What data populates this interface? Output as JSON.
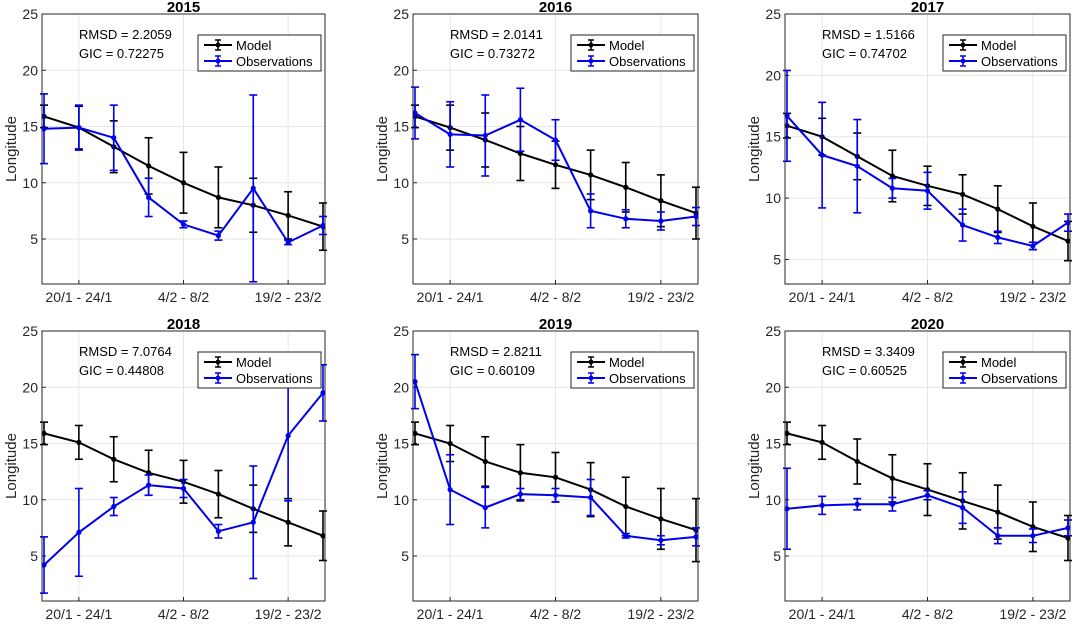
{
  "colors": {
    "model": "#000000",
    "observations": "#0000EE",
    "grid": "#e6e6e6",
    "axis": "#262626"
  },
  "legend": {
    "model": "Model",
    "observations": "Observations"
  },
  "chart_data": [
    {
      "type": "line",
      "title": "2015",
      "ylabel": "Longitude",
      "ylim": [
        1,
        25
      ],
      "yticks": [
        5,
        10,
        15,
        20,
        25
      ],
      "xticklabels": [
        "20/1 - 24/1",
        "4/2 - 8/2",
        "19/2 - 23/2"
      ],
      "stats": {
        "rmsd": "RMSD = 2.2059",
        "gic": "GIC = 0.72275"
      },
      "series": [
        {
          "name": "Model",
          "values": [
            15.9,
            14.9,
            13.2,
            11.5,
            10.0,
            8.7,
            8.0,
            7.1,
            6.1
          ],
          "errors": [
            1.0,
            1.9,
            2.3,
            2.5,
            2.7,
            2.7,
            2.4,
            2.1,
            2.1
          ]
        },
        {
          "name": "Observations",
          "values": [
            14.8,
            14.9,
            14.0,
            8.7,
            6.3,
            5.3,
            9.5,
            4.7,
            6.2
          ],
          "errors": [
            3.1,
            2.0,
            2.9,
            1.7,
            0.3,
            0.4,
            8.3,
            0.2,
            0.8
          ]
        }
      ]
    },
    {
      "type": "line",
      "title": "2016",
      "ylabel": "Longitude",
      "ylim": [
        1,
        25
      ],
      "yticks": [
        5,
        10,
        15,
        20,
        25
      ],
      "xticklabels": [
        "20/1 - 24/1",
        "4/2 - 8/2",
        "19/2 - 23/2"
      ],
      "stats": {
        "rmsd": "RMSD = 2.0141",
        "gic": "GIC = 0.73272"
      },
      "series": [
        {
          "name": "Model",
          "values": [
            15.9,
            14.9,
            13.8,
            12.6,
            11.6,
            10.7,
            9.6,
            8.4,
            7.3
          ],
          "errors": [
            1.0,
            2.0,
            2.4,
            2.4,
            2.1,
            2.2,
            2.2,
            2.3,
            2.3
          ]
        },
        {
          "name": "Observations",
          "values": [
            16.2,
            14.3,
            14.2,
            15.6,
            13.8,
            7.5,
            6.8,
            6.6,
            7.0
          ],
          "errors": [
            2.3,
            2.9,
            3.6,
            2.8,
            1.8,
            1.5,
            0.8,
            0.8,
            0.8
          ]
        }
      ]
    },
    {
      "type": "line",
      "title": "2017",
      "ylabel": "Longitude",
      "ylim": [
        3,
        25
      ],
      "yticks": [
        5,
        10,
        15,
        20,
        25
      ],
      "xticklabels": [
        "20/1 - 24/1",
        "4/2 - 8/2",
        "19/2 - 23/2"
      ],
      "stats": {
        "rmsd": "RMSD = 1.5166",
        "gic": "GIC = 0.74702"
      },
      "series": [
        {
          "name": "Model",
          "values": [
            15.9,
            15.0,
            13.4,
            11.8,
            11.0,
            10.3,
            9.1,
            7.7,
            6.5
          ],
          "errors": [
            1.0,
            1.5,
            1.9,
            2.1,
            1.6,
            1.6,
            1.9,
            1.9,
            1.6
          ]
        },
        {
          "name": "Observations",
          "values": [
            16.7,
            13.5,
            12.6,
            10.8,
            10.6,
            7.8,
            6.8,
            6.1,
            8.0
          ],
          "errors": [
            3.7,
            4.3,
            3.8,
            0.8,
            1.5,
            1.3,
            0.5,
            0.3,
            0.7
          ]
        }
      ]
    },
    {
      "type": "line",
      "title": "2018",
      "ylabel": "Longitude",
      "ylim": [
        1,
        25
      ],
      "yticks": [
        5,
        10,
        15,
        20,
        25
      ],
      "xticklabels": [
        "20/1 - 24/1",
        "4/2 - 8/2",
        "19/2 - 23/2"
      ],
      "stats": {
        "rmsd": "RMSD = 7.0764",
        "gic": "GIC = 0.44808"
      },
      "series": [
        {
          "name": "Model",
          "values": [
            15.9,
            15.1,
            13.6,
            12.4,
            11.6,
            10.5,
            9.2,
            8.0,
            6.8
          ],
          "errors": [
            1.0,
            1.5,
            2.0,
            2.0,
            1.9,
            2.1,
            2.1,
            2.1,
            2.2
          ]
        },
        {
          "name": "Observations",
          "values": [
            4.2,
            7.1,
            9.4,
            11.3,
            11.0,
            7.2,
            8.0,
            15.7,
            19.5
          ],
          "errors": [
            2.5,
            3.9,
            0.8,
            0.9,
            0.8,
            0.6,
            5.0,
            5.8,
            2.5
          ]
        }
      ]
    },
    {
      "type": "line",
      "title": "2019",
      "ylabel": "Longitude",
      "ylim": [
        1,
        25
      ],
      "yticks": [
        5,
        10,
        15,
        20,
        25
      ],
      "xticklabels": [
        "20/1 - 24/1",
        "4/2 - 8/2",
        "19/2 - 23/2"
      ],
      "stats": {
        "rmsd": "RMSD = 2.8211",
        "gic": "GIC = 0.60109"
      },
      "series": [
        {
          "name": "Model",
          "values": [
            15.9,
            15.0,
            13.4,
            12.4,
            12.0,
            10.9,
            9.4,
            8.3,
            7.3
          ],
          "errors": [
            1.0,
            1.6,
            2.2,
            2.5,
            2.2,
            2.4,
            2.6,
            2.7,
            2.8
          ]
        },
        {
          "name": "Observations",
          "values": [
            20.5,
            10.9,
            9.3,
            10.5,
            10.4,
            10.2,
            6.8,
            6.4,
            6.7
          ],
          "errors": [
            2.4,
            3.1,
            1.8,
            0.5,
            0.6,
            1.6,
            0.2,
            0.4,
            0.8
          ]
        }
      ]
    },
    {
      "type": "line",
      "title": "2020",
      "ylabel": "Longitude",
      "ylim": [
        1,
        25
      ],
      "yticks": [
        5,
        10,
        15,
        20,
        25
      ],
      "xticklabels": [
        "20/1 - 24/1",
        "4/2 - 8/2",
        "19/2 - 23/2"
      ],
      "stats": {
        "rmsd": "RMSD = 3.3409",
        "gic": "GIC = 0.60525"
      },
      "series": [
        {
          "name": "Model",
          "values": [
            15.9,
            15.1,
            13.4,
            11.9,
            10.9,
            9.9,
            8.9,
            7.6,
            6.6
          ],
          "errors": [
            1.0,
            1.5,
            2.0,
            2.1,
            2.3,
            2.5,
            2.4,
            2.2,
            2.0
          ]
        },
        {
          "name": "Observations",
          "values": [
            9.2,
            9.5,
            9.6,
            9.6,
            10.4,
            9.3,
            6.8,
            6.8,
            7.5
          ],
          "errors": [
            3.6,
            0.8,
            0.5,
            0.6,
            0.4,
            1.4,
            0.7,
            0.6,
            0.7
          ]
        }
      ]
    }
  ]
}
